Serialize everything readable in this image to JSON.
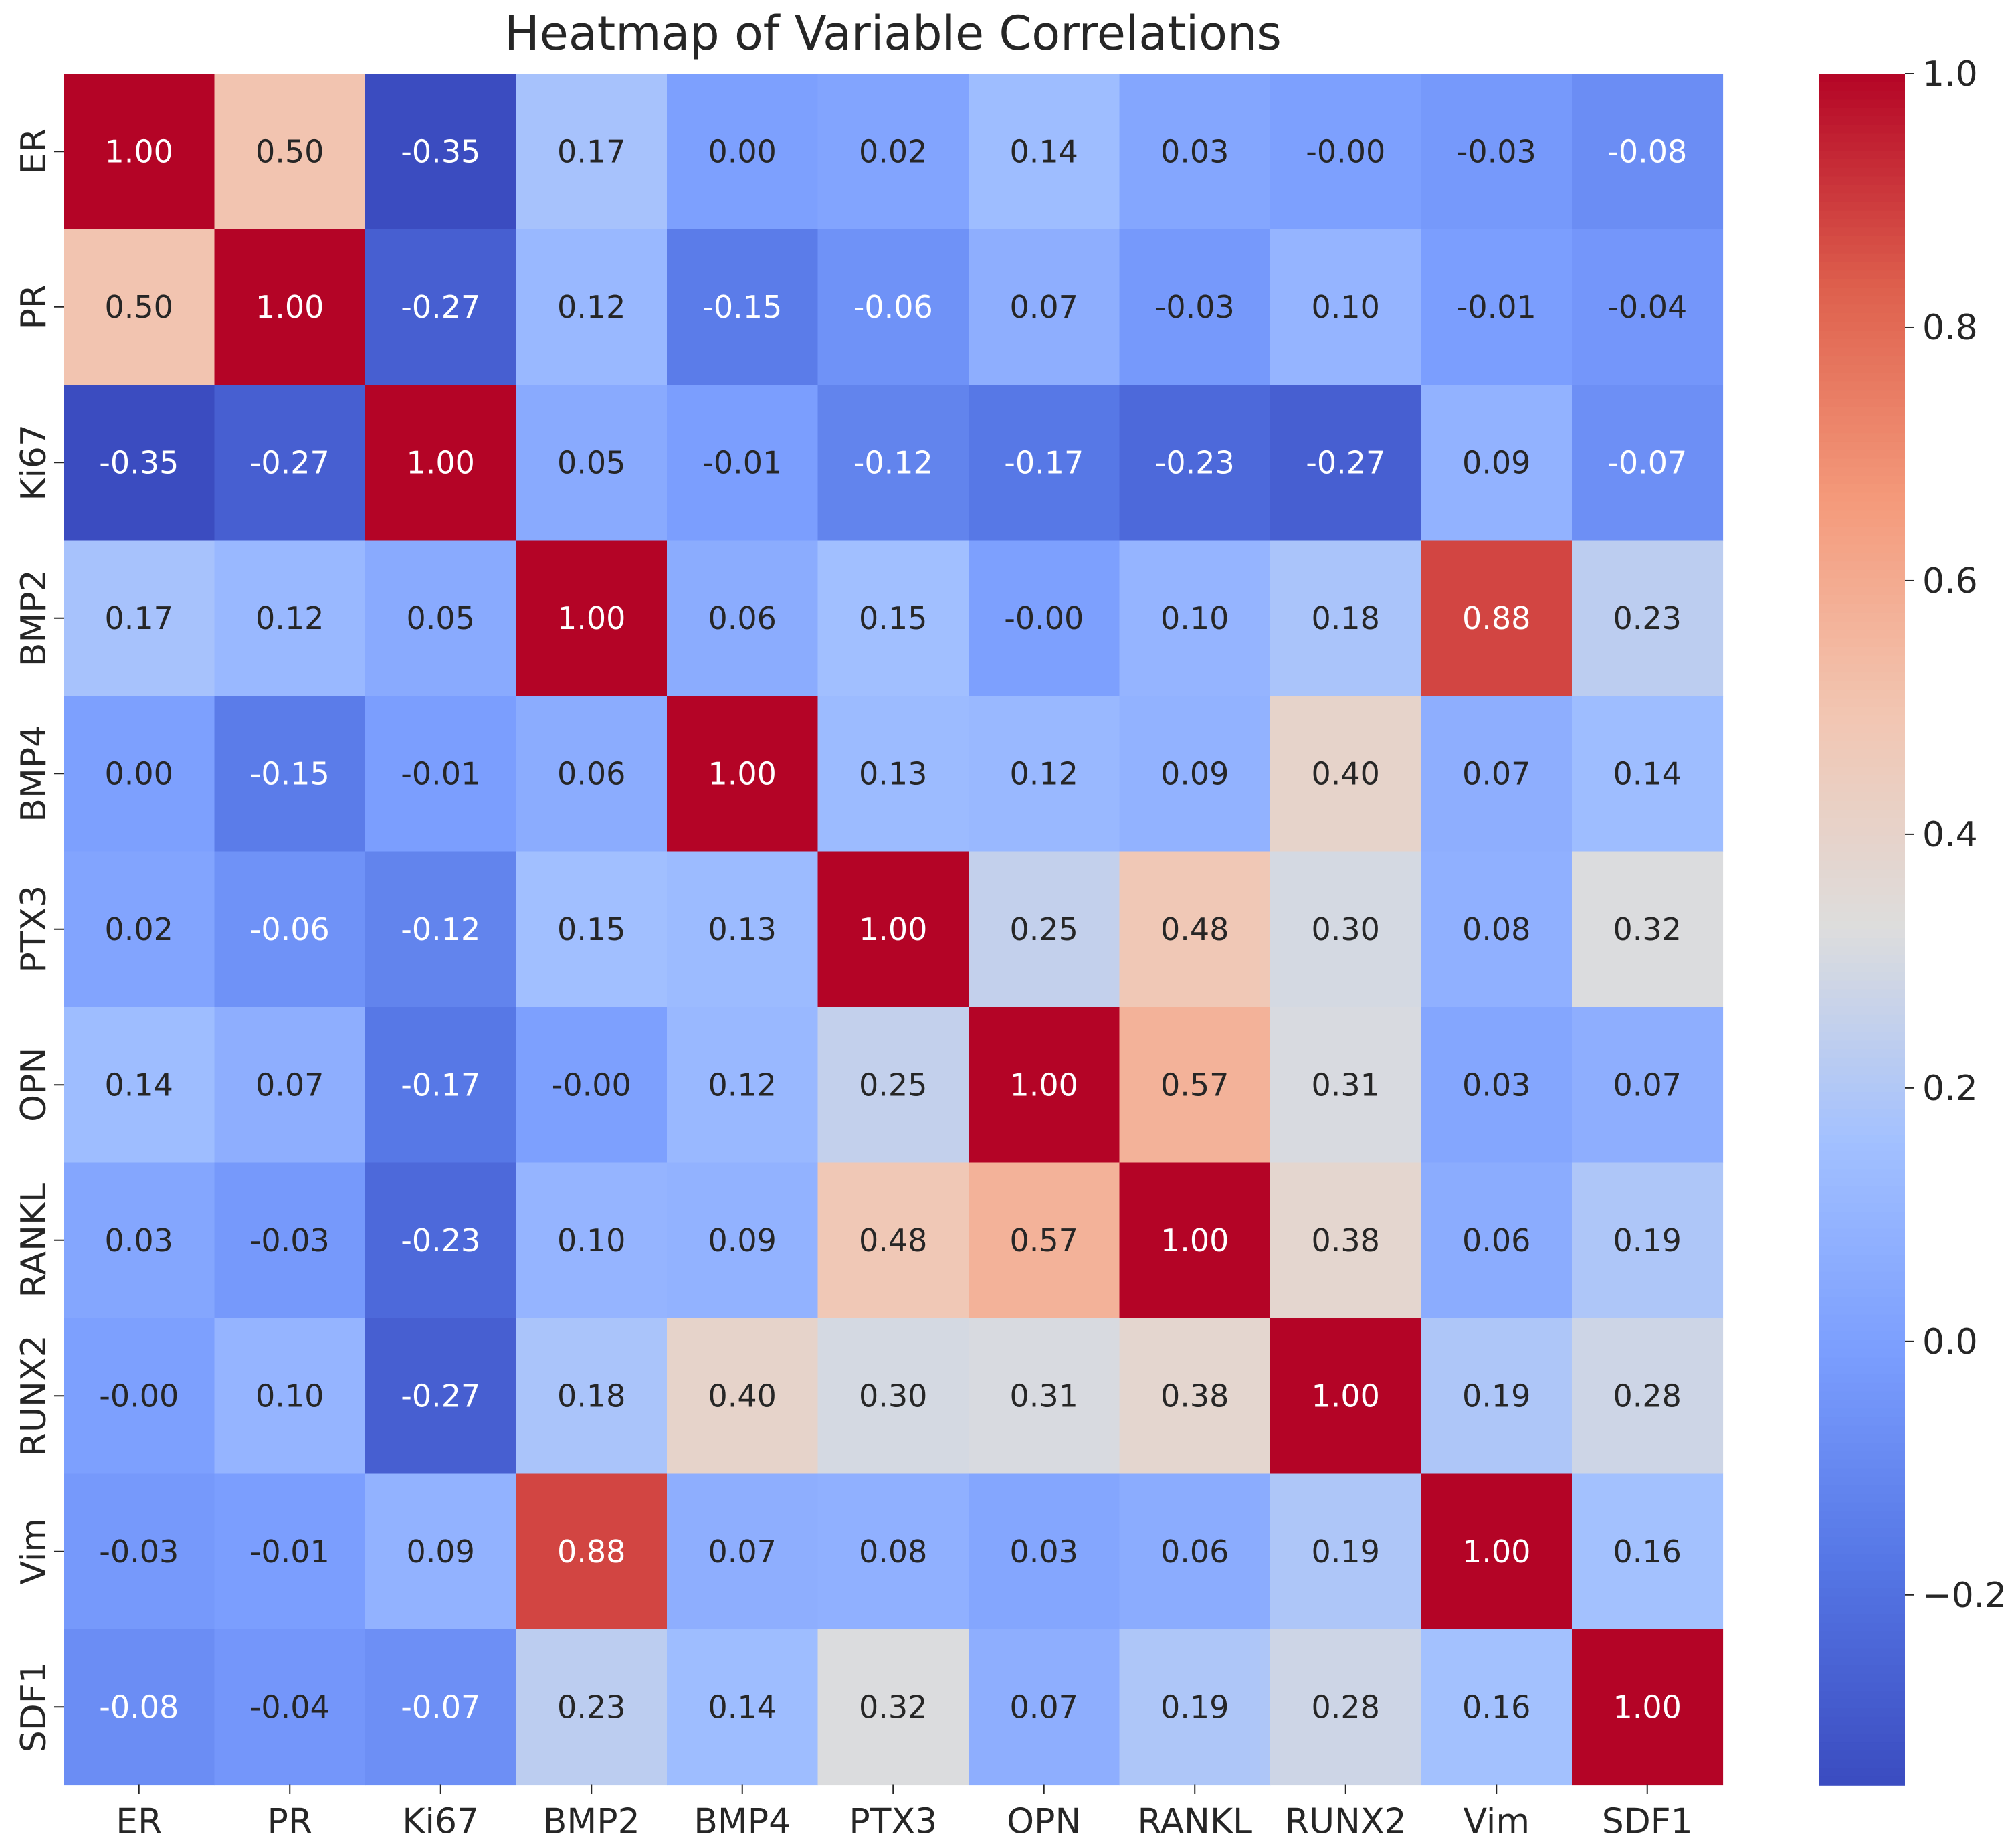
{
  "chart_data": {
    "type": "heatmap",
    "title": "Heatmap of Variable Correlations",
    "xlabel": "",
    "ylabel": "",
    "row_labels": [
      "ER",
      "PR",
      "Ki67",
      "BMP2",
      "BMP4",
      "PTX3",
      "OPN",
      "RANKL",
      "RUNX2",
      "Vim",
      "SDF1"
    ],
    "col_labels": [
      "ER",
      "PR",
      "Ki67",
      "BMP2",
      "BMP4",
      "PTX3",
      "OPN",
      "RANKL",
      "RUNX2",
      "Vim",
      "SDF1"
    ],
    "cell_labels": [
      [
        "1.00",
        "0.50",
        "-0.35",
        "0.17",
        "0.00",
        "0.02",
        "0.14",
        "0.03",
        "-0.00",
        "-0.03",
        "-0.08"
      ],
      [
        "0.50",
        "1.00",
        "-0.27",
        "0.12",
        "-0.15",
        "-0.06",
        "0.07",
        "-0.03",
        "0.10",
        "-0.01",
        "-0.04"
      ],
      [
        "-0.35",
        "-0.27",
        "1.00",
        "0.05",
        "-0.01",
        "-0.12",
        "-0.17",
        "-0.23",
        "-0.27",
        "0.09",
        "-0.07"
      ],
      [
        "0.17",
        "0.12",
        "0.05",
        "1.00",
        "0.06",
        "0.15",
        "-0.00",
        "0.10",
        "0.18",
        "0.88",
        "0.23"
      ],
      [
        "0.00",
        "-0.15",
        "-0.01",
        "0.06",
        "1.00",
        "0.13",
        "0.12",
        "0.09",
        "0.40",
        "0.07",
        "0.14"
      ],
      [
        "0.02",
        "-0.06",
        "-0.12",
        "0.15",
        "0.13",
        "1.00",
        "0.25",
        "0.48",
        "0.30",
        "0.08",
        "0.32"
      ],
      [
        "0.14",
        "0.07",
        "-0.17",
        "-0.00",
        "0.12",
        "0.25",
        "1.00",
        "0.57",
        "0.31",
        "0.03",
        "0.07"
      ],
      [
        "0.03",
        "-0.03",
        "-0.23",
        "0.10",
        "0.09",
        "0.48",
        "0.57",
        "1.00",
        "0.38",
        "0.06",
        "0.19"
      ],
      [
        "-0.00",
        "0.10",
        "-0.27",
        "0.18",
        "0.40",
        "0.30",
        "0.31",
        "0.38",
        "1.00",
        "0.19",
        "0.28"
      ],
      [
        "-0.03",
        "-0.01",
        "0.09",
        "0.88",
        "0.07",
        "0.08",
        "0.03",
        "0.06",
        "0.19",
        "1.00",
        "0.16"
      ],
      [
        "-0.08",
        "-0.04",
        "-0.07",
        "0.23",
        "0.14",
        "0.32",
        "0.07",
        "0.19",
        "0.28",
        "0.16",
        "1.00"
      ]
    ],
    "colorbar": {
      "colormap": "coolwarm",
      "vmin": -0.35,
      "vmax": 1.0,
      "ticks": [
        1.0,
        0.8,
        0.6,
        0.4,
        0.2,
        0.0,
        -0.2
      ],
      "tick_labels": [
        "1.0",
        "0.8",
        "0.6",
        "0.4",
        "0.2",
        "0.0",
        "−0.2"
      ]
    },
    "colors": {
      "low": "#3b4cc0",
      "mid": "#dddddd",
      "high": "#b40426",
      "text_dark": "#262626",
      "text_light": "#ffffff"
    }
  }
}
